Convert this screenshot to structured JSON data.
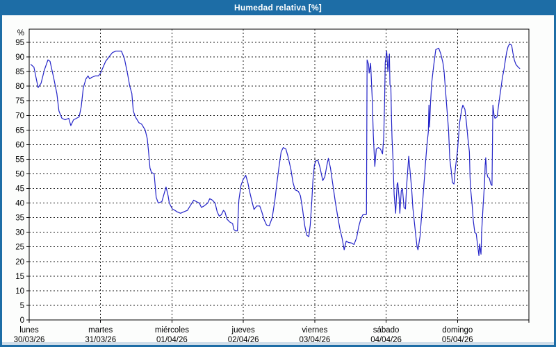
{
  "window": {
    "title": "Humedad relativa [%]"
  },
  "colors": {
    "titlebar_bg": "#1d6da6",
    "titlebar_text": "#ffffff",
    "frame_border": "#1d6da6",
    "content_bg": "#fcfdfc",
    "margin_strip": "#cfdde9",
    "plot_bg": "#ffffff",
    "axis": "#000000",
    "grid": "#1a1a1a",
    "label_text": "#000000",
    "series_line": "#2323c8"
  },
  "chart_data": {
    "type": "line",
    "title": "Humedad relativa [%]",
    "ylabel": "%",
    "y_unit_label": "%",
    "ylim": [
      0,
      100
    ],
    "y_ticks": [
      0,
      5,
      10,
      15,
      20,
      25,
      30,
      35,
      40,
      45,
      50,
      55,
      60,
      65,
      70,
      75,
      80,
      85,
      90,
      95
    ],
    "x_range_hours": [
      0,
      168
    ],
    "x_tick_hours_step": 24,
    "grid": "dashed",
    "legend_position": "none",
    "x_days": [
      {
        "name": "lunes",
        "date": "30/03/26"
      },
      {
        "name": "martes",
        "date": "31/03/26"
      },
      {
        "name": "miércoles",
        "date": "01/04/26"
      },
      {
        "name": "jueves",
        "date": "02/04/26"
      },
      {
        "name": "viernes",
        "date": "03/04/26"
      },
      {
        "name": "sábado",
        "date": "04/04/26"
      },
      {
        "name": "domingo",
        "date": "05/04/26"
      }
    ],
    "series": [
      {
        "name": "Humedad relativa",
        "points": [
          [
            0.5,
            87.5
          ],
          [
            1.6,
            86.5
          ],
          [
            3,
            79.5
          ],
          [
            4,
            81
          ],
          [
            5.1,
            85.5
          ],
          [
            6.3,
            89
          ],
          [
            7,
            88.5
          ],
          [
            8.2,
            83
          ],
          [
            9.3,
            77.5
          ],
          [
            10,
            71.5
          ],
          [
            11,
            69
          ],
          [
            12.1,
            68.5
          ],
          [
            13.3,
            69
          ],
          [
            14,
            66.5
          ],
          [
            14.9,
            68.5
          ],
          [
            15.9,
            69
          ],
          [
            16.8,
            69.5
          ],
          [
            17.5,
            73
          ],
          [
            18.2,
            79.5
          ],
          [
            19.1,
            82.5
          ],
          [
            19.8,
            83.5
          ],
          [
            20.3,
            82.5
          ],
          [
            21,
            83
          ],
          [
            22.2,
            83.5
          ],
          [
            23.3,
            83.5
          ],
          [
            24,
            84.5
          ],
          [
            25.7,
            88.5
          ],
          [
            26.8,
            90
          ],
          [
            28,
            91.5
          ],
          [
            29.2,
            92
          ],
          [
            31,
            92
          ],
          [
            32,
            89.5
          ],
          [
            33.1,
            84
          ],
          [
            33.8,
            80
          ],
          [
            34.5,
            77.5
          ],
          [
            35,
            71.5
          ],
          [
            35.7,
            69.5
          ],
          [
            36.9,
            67.5
          ],
          [
            37.8,
            67
          ],
          [
            39,
            65
          ],
          [
            39.7,
            62
          ],
          [
            40.1,
            58
          ],
          [
            40.6,
            52
          ],
          [
            41.1,
            50.5
          ],
          [
            42,
            50
          ],
          [
            42.7,
            42
          ],
          [
            43.4,
            40
          ],
          [
            44.6,
            40.5
          ],
          [
            45.3,
            43
          ],
          [
            46,
            45.5
          ],
          [
            46.7,
            42.5
          ],
          [
            47.1,
            40
          ],
          [
            48.1,
            38
          ],
          [
            49,
            37.5
          ],
          [
            49.7,
            37
          ],
          [
            50.9,
            36.5
          ],
          [
            52,
            37
          ],
          [
            53.2,
            37.5
          ],
          [
            54.1,
            39
          ],
          [
            55.3,
            41
          ],
          [
            56.2,
            40.5
          ],
          [
            57.2,
            40
          ],
          [
            57.9,
            38.5
          ],
          [
            58.8,
            39
          ],
          [
            60,
            40
          ],
          [
            60.7,
            41.5
          ],
          [
            61.6,
            41
          ],
          [
            62.5,
            40
          ],
          [
            63.2,
            37
          ],
          [
            63.9,
            35.5
          ],
          [
            64.6,
            36
          ],
          [
            65.3,
            37.5
          ],
          [
            65.8,
            37
          ],
          [
            66.5,
            34.5
          ],
          [
            67.4,
            33.5
          ],
          [
            68.4,
            33
          ],
          [
            68.8,
            31
          ],
          [
            69.3,
            30.5
          ],
          [
            70,
            30.5
          ],
          [
            70.5,
            41
          ],
          [
            71.2,
            46
          ],
          [
            71.9,
            48
          ],
          [
            72.8,
            49.5
          ],
          [
            73.5,
            47
          ],
          [
            74.2,
            43.5
          ],
          [
            74.9,
            40.5
          ],
          [
            75.6,
            37.8
          ],
          [
            76.5,
            39
          ],
          [
            77.5,
            39
          ],
          [
            78.2,
            37
          ],
          [
            78.9,
            34.5
          ],
          [
            79.8,
            32.5
          ],
          [
            80.7,
            32.2
          ],
          [
            81.7,
            35
          ],
          [
            82.6,
            41
          ],
          [
            83.3,
            47
          ],
          [
            84,
            52.5
          ],
          [
            84.7,
            57.5
          ],
          [
            85.4,
            59
          ],
          [
            86.3,
            58.5
          ],
          [
            87,
            56
          ],
          [
            88,
            51.5
          ],
          [
            88.7,
            47
          ],
          [
            89.4,
            44.5
          ],
          [
            90.5,
            44
          ],
          [
            91.2,
            42.5
          ],
          [
            91.9,
            38
          ],
          [
            92.6,
            32.5
          ],
          [
            93.3,
            29
          ],
          [
            94,
            28.5
          ],
          [
            94.5,
            32.5
          ],
          [
            95,
            40.5
          ],
          [
            95.4,
            48
          ],
          [
            95.9,
            53
          ],
          [
            96.4,
            54.5
          ],
          [
            97.1,
            54.5
          ],
          [
            97.8,
            52
          ],
          [
            98.7,
            47.7
          ],
          [
            99.4,
            49
          ],
          [
            100.1,
            53
          ],
          [
            100.6,
            55.3
          ],
          [
            101.3,
            52
          ],
          [
            102,
            47
          ],
          [
            102.9,
            40.5
          ],
          [
            103.8,
            35
          ],
          [
            104.5,
            31
          ],
          [
            105.2,
            28
          ],
          [
            105.9,
            24
          ],
          [
            106.6,
            27
          ],
          [
            107.3,
            26.5
          ],
          [
            108.5,
            26.3
          ],
          [
            109.2,
            25.8
          ],
          [
            110.1,
            28.2
          ],
          [
            110.8,
            32
          ],
          [
            111.5,
            34.6
          ],
          [
            112.2,
            36
          ],
          [
            113.2,
            36
          ],
          [
            113.4,
            36.2
          ],
          [
            113.6,
            89
          ],
          [
            114.1,
            87.5
          ],
          [
            114.3,
            84.5
          ],
          [
            114.8,
            87.8
          ],
          [
            115.3,
            76
          ],
          [
            115.7,
            63
          ],
          [
            116.2,
            52.5
          ],
          [
            116.7,
            58.5
          ],
          [
            117.4,
            59
          ],
          [
            118.1,
            58.5
          ],
          [
            118.8,
            56.8
          ],
          [
            119.2,
            62.4
          ],
          [
            119.5,
            75
          ],
          [
            119.7,
            88
          ],
          [
            120.2,
            92
          ],
          [
            120.6,
            85
          ],
          [
            121.1,
            91
          ],
          [
            121.3,
            80.5
          ],
          [
            121.6,
            79.5
          ],
          [
            121.8,
            69
          ],
          [
            122,
            62
          ],
          [
            122.3,
            55.3
          ],
          [
            122.5,
            48.5
          ],
          [
            122.7,
            43
          ],
          [
            123.2,
            36.5
          ],
          [
            123.7,
            46.5
          ],
          [
            123.9,
            47
          ],
          [
            124.4,
            41.4
          ],
          [
            124.6,
            36.5
          ],
          [
            125.1,
            44.2
          ],
          [
            125.5,
            44.9
          ],
          [
            126,
            38.5
          ],
          [
            126.5,
            38
          ],
          [
            126.9,
            46
          ],
          [
            127.4,
            53
          ],
          [
            127.6,
            56
          ],
          [
            128.1,
            50.5
          ],
          [
            128.6,
            44.5
          ],
          [
            129,
            38.2
          ],
          [
            129.5,
            33.5
          ],
          [
            130,
            28.5
          ],
          [
            130.4,
            25
          ],
          [
            130.7,
            24
          ],
          [
            131.4,
            28.7
          ],
          [
            132.1,
            38.2
          ],
          [
            132.8,
            47.7
          ],
          [
            133.2,
            53.3
          ],
          [
            133.7,
            59.6
          ],
          [
            134.2,
            64.4
          ],
          [
            134.4,
            73.5
          ],
          [
            134.6,
            66
          ],
          [
            134.9,
            73.5
          ],
          [
            135.3,
            81
          ],
          [
            136,
            87
          ],
          [
            136.7,
            92.5
          ],
          [
            137.7,
            93
          ],
          [
            138.4,
            91
          ],
          [
            139.1,
            88
          ],
          [
            139.5,
            85
          ],
          [
            140,
            78
          ],
          [
            140.5,
            71.5
          ],
          [
            141,
            65
          ],
          [
            141.4,
            55
          ],
          [
            141.9,
            51
          ],
          [
            142.3,
            47
          ],
          [
            142.8,
            46.5
          ],
          [
            143.3,
            52
          ],
          [
            144,
            58
          ],
          [
            144.7,
            67.5
          ],
          [
            145.4,
            72
          ],
          [
            145.8,
            73.5
          ],
          [
            146.5,
            72
          ],
          [
            147,
            67.5
          ],
          [
            147.5,
            62
          ],
          [
            148,
            57.5
          ],
          [
            148.2,
            49
          ],
          [
            148.4,
            45
          ],
          [
            148.9,
            39.5
          ],
          [
            149.3,
            34
          ],
          [
            149.8,
            30
          ],
          [
            150.3,
            29.5
          ],
          [
            150.7,
            26
          ],
          [
            151.2,
            22
          ],
          [
            151.4,
            26
          ],
          [
            151.9,
            22.5
          ],
          [
            152.1,
            30
          ],
          [
            152.6,
            39
          ],
          [
            153.1,
            47
          ],
          [
            153.3,
            53
          ],
          [
            153.5,
            55.5
          ],
          [
            153.8,
            50.5
          ],
          [
            154.2,
            48.9
          ],
          [
            154.7,
            48.5
          ],
          [
            155.2,
            46.5
          ],
          [
            155.6,
            46
          ],
          [
            155.9,
            73.5
          ],
          [
            156.3,
            70
          ],
          [
            156.6,
            69
          ],
          [
            157.3,
            69.5
          ],
          [
            157.7,
            72.5
          ],
          [
            158.2,
            76.5
          ],
          [
            158.7,
            80
          ],
          [
            159.1,
            83
          ],
          [
            159.6,
            85.5
          ],
          [
            160.1,
            89
          ],
          [
            160.5,
            91.5
          ],
          [
            161,
            93.5
          ],
          [
            161.5,
            94.5
          ],
          [
            162.2,
            94
          ],
          [
            162.6,
            91.5
          ],
          [
            163.1,
            89
          ],
          [
            163.6,
            87.5
          ],
          [
            164.3,
            86.6
          ],
          [
            165,
            86
          ]
        ]
      }
    ]
  }
}
